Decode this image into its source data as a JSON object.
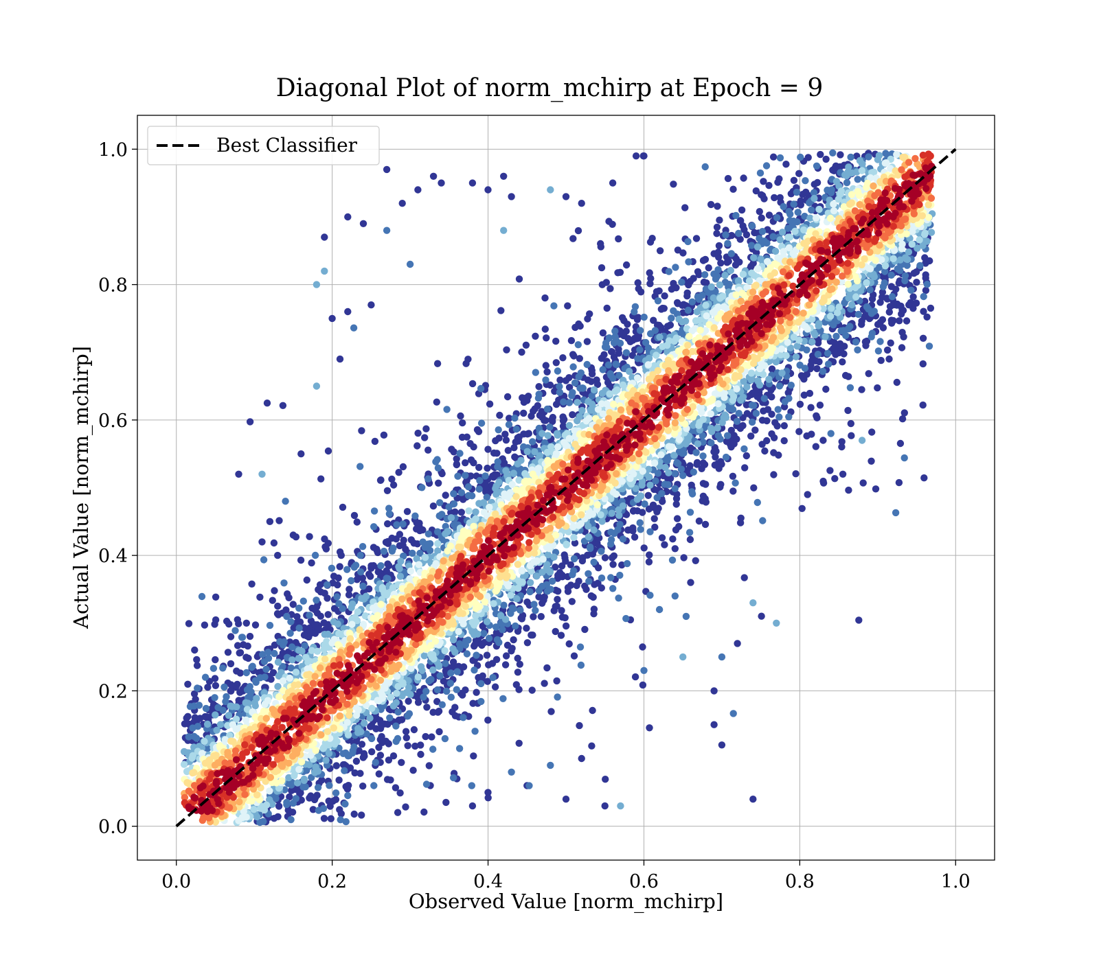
{
  "chart_data": {
    "type": "scatter",
    "title": "Diagonal Plot of norm_mchirp at Epoch = 9",
    "xlabel": "Observed Value [norm_mchirp]",
    "ylabel": "Actual Value [norm_mchirp]",
    "xlim": [
      -0.05,
      1.05
    ],
    "ylim": [
      -0.05,
      1.05
    ],
    "xticks": [
      "0.0",
      "0.2",
      "0.4",
      "0.6",
      "0.8",
      "1.0"
    ],
    "yticks": [
      "0.0",
      "0.2",
      "0.4",
      "0.6",
      "0.8",
      "1.0"
    ],
    "grid": true,
    "legend": {
      "position": "top-left",
      "entries": [
        "Best Classifier"
      ]
    },
    "reference_line": {
      "name": "Best Classifier",
      "style": "dashed",
      "color": "#000000",
      "x": [
        0.0,
        1.0
      ],
      "y": [
        0.0,
        1.0
      ]
    },
    "colormap": [
      "#313695",
      "#4575b4",
      "#74add1",
      "#abd9e9",
      "#e0f3f8",
      "#ffffbf",
      "#fee090",
      "#fdae61",
      "#f46d43",
      "#d73027",
      "#a50026"
    ],
    "point_color": "density along diagonal (high = red, low = dark blue)",
    "point_count_estimate": 9000,
    "band_spread": 0.06,
    "outliers": [
      [
        0.08,
        0.52
      ],
      [
        0.11,
        0.52
      ],
      [
        0.14,
        0.48
      ],
      [
        0.16,
        0.55
      ],
      [
        0.18,
        0.65
      ],
      [
        0.18,
        0.8
      ],
      [
        0.19,
        0.87
      ],
      [
        0.19,
        0.82
      ],
      [
        0.22,
        0.9
      ],
      [
        0.24,
        0.89
      ],
      [
        0.27,
        0.97
      ],
      [
        0.27,
        0.88
      ],
      [
        0.29,
        0.92
      ],
      [
        0.31,
        0.94
      ],
      [
        0.33,
        0.96
      ],
      [
        0.34,
        0.95
      ],
      [
        0.38,
        0.95
      ],
      [
        0.4,
        0.94
      ],
      [
        0.42,
        0.96
      ],
      [
        0.43,
        0.93
      ],
      [
        0.42,
        0.88
      ],
      [
        0.25,
        0.77
      ],
      [
        0.22,
        0.76
      ],
      [
        0.21,
        0.69
      ],
      [
        0.2,
        0.75
      ],
      [
        0.3,
        0.83
      ],
      [
        0.55,
        0.03
      ],
      [
        0.57,
        0.03
      ],
      [
        0.74,
        0.04
      ],
      [
        0.69,
        0.15
      ],
      [
        0.7,
        0.12
      ],
      [
        0.69,
        0.2
      ],
      [
        0.6,
        0.23
      ],
      [
        0.65,
        0.25
      ],
      [
        0.7,
        0.25
      ],
      [
        0.72,
        0.27
      ],
      [
        0.74,
        0.33
      ],
      [
        0.77,
        0.3
      ],
      [
        0.81,
        0.49
      ],
      [
        0.83,
        0.57
      ],
      [
        0.88,
        0.57
      ],
      [
        0.6,
        0.99
      ],
      [
        0.59,
        0.99
      ],
      [
        0.56,
        0.95
      ],
      [
        0.48,
        0.94
      ],
      [
        0.5,
        0.93
      ],
      [
        0.52,
        0.92
      ],
      [
        0.92,
        0.77
      ],
      [
        0.94,
        0.77
      ],
      [
        0.84,
        0.58
      ],
      [
        0.11,
        0.42
      ],
      [
        0.12,
        0.45
      ],
      [
        0.13,
        0.4
      ],
      [
        0.15,
        0.43
      ],
      [
        0.09,
        0.3
      ],
      [
        0.07,
        0.28
      ],
      [
        0.5,
        0.04
      ],
      [
        0.45,
        0.06
      ],
      [
        0.52,
        0.1
      ],
      [
        0.48,
        0.09
      ],
      [
        0.62,
        0.32
      ],
      [
        0.64,
        0.34
      ],
      [
        0.66,
        0.36
      ],
      [
        0.64,
        0.41
      ],
      [
        0.36,
        0.07
      ],
      [
        0.38,
        0.03
      ],
      [
        0.4,
        0.05
      ],
      [
        0.43,
        0.08
      ]
    ]
  }
}
